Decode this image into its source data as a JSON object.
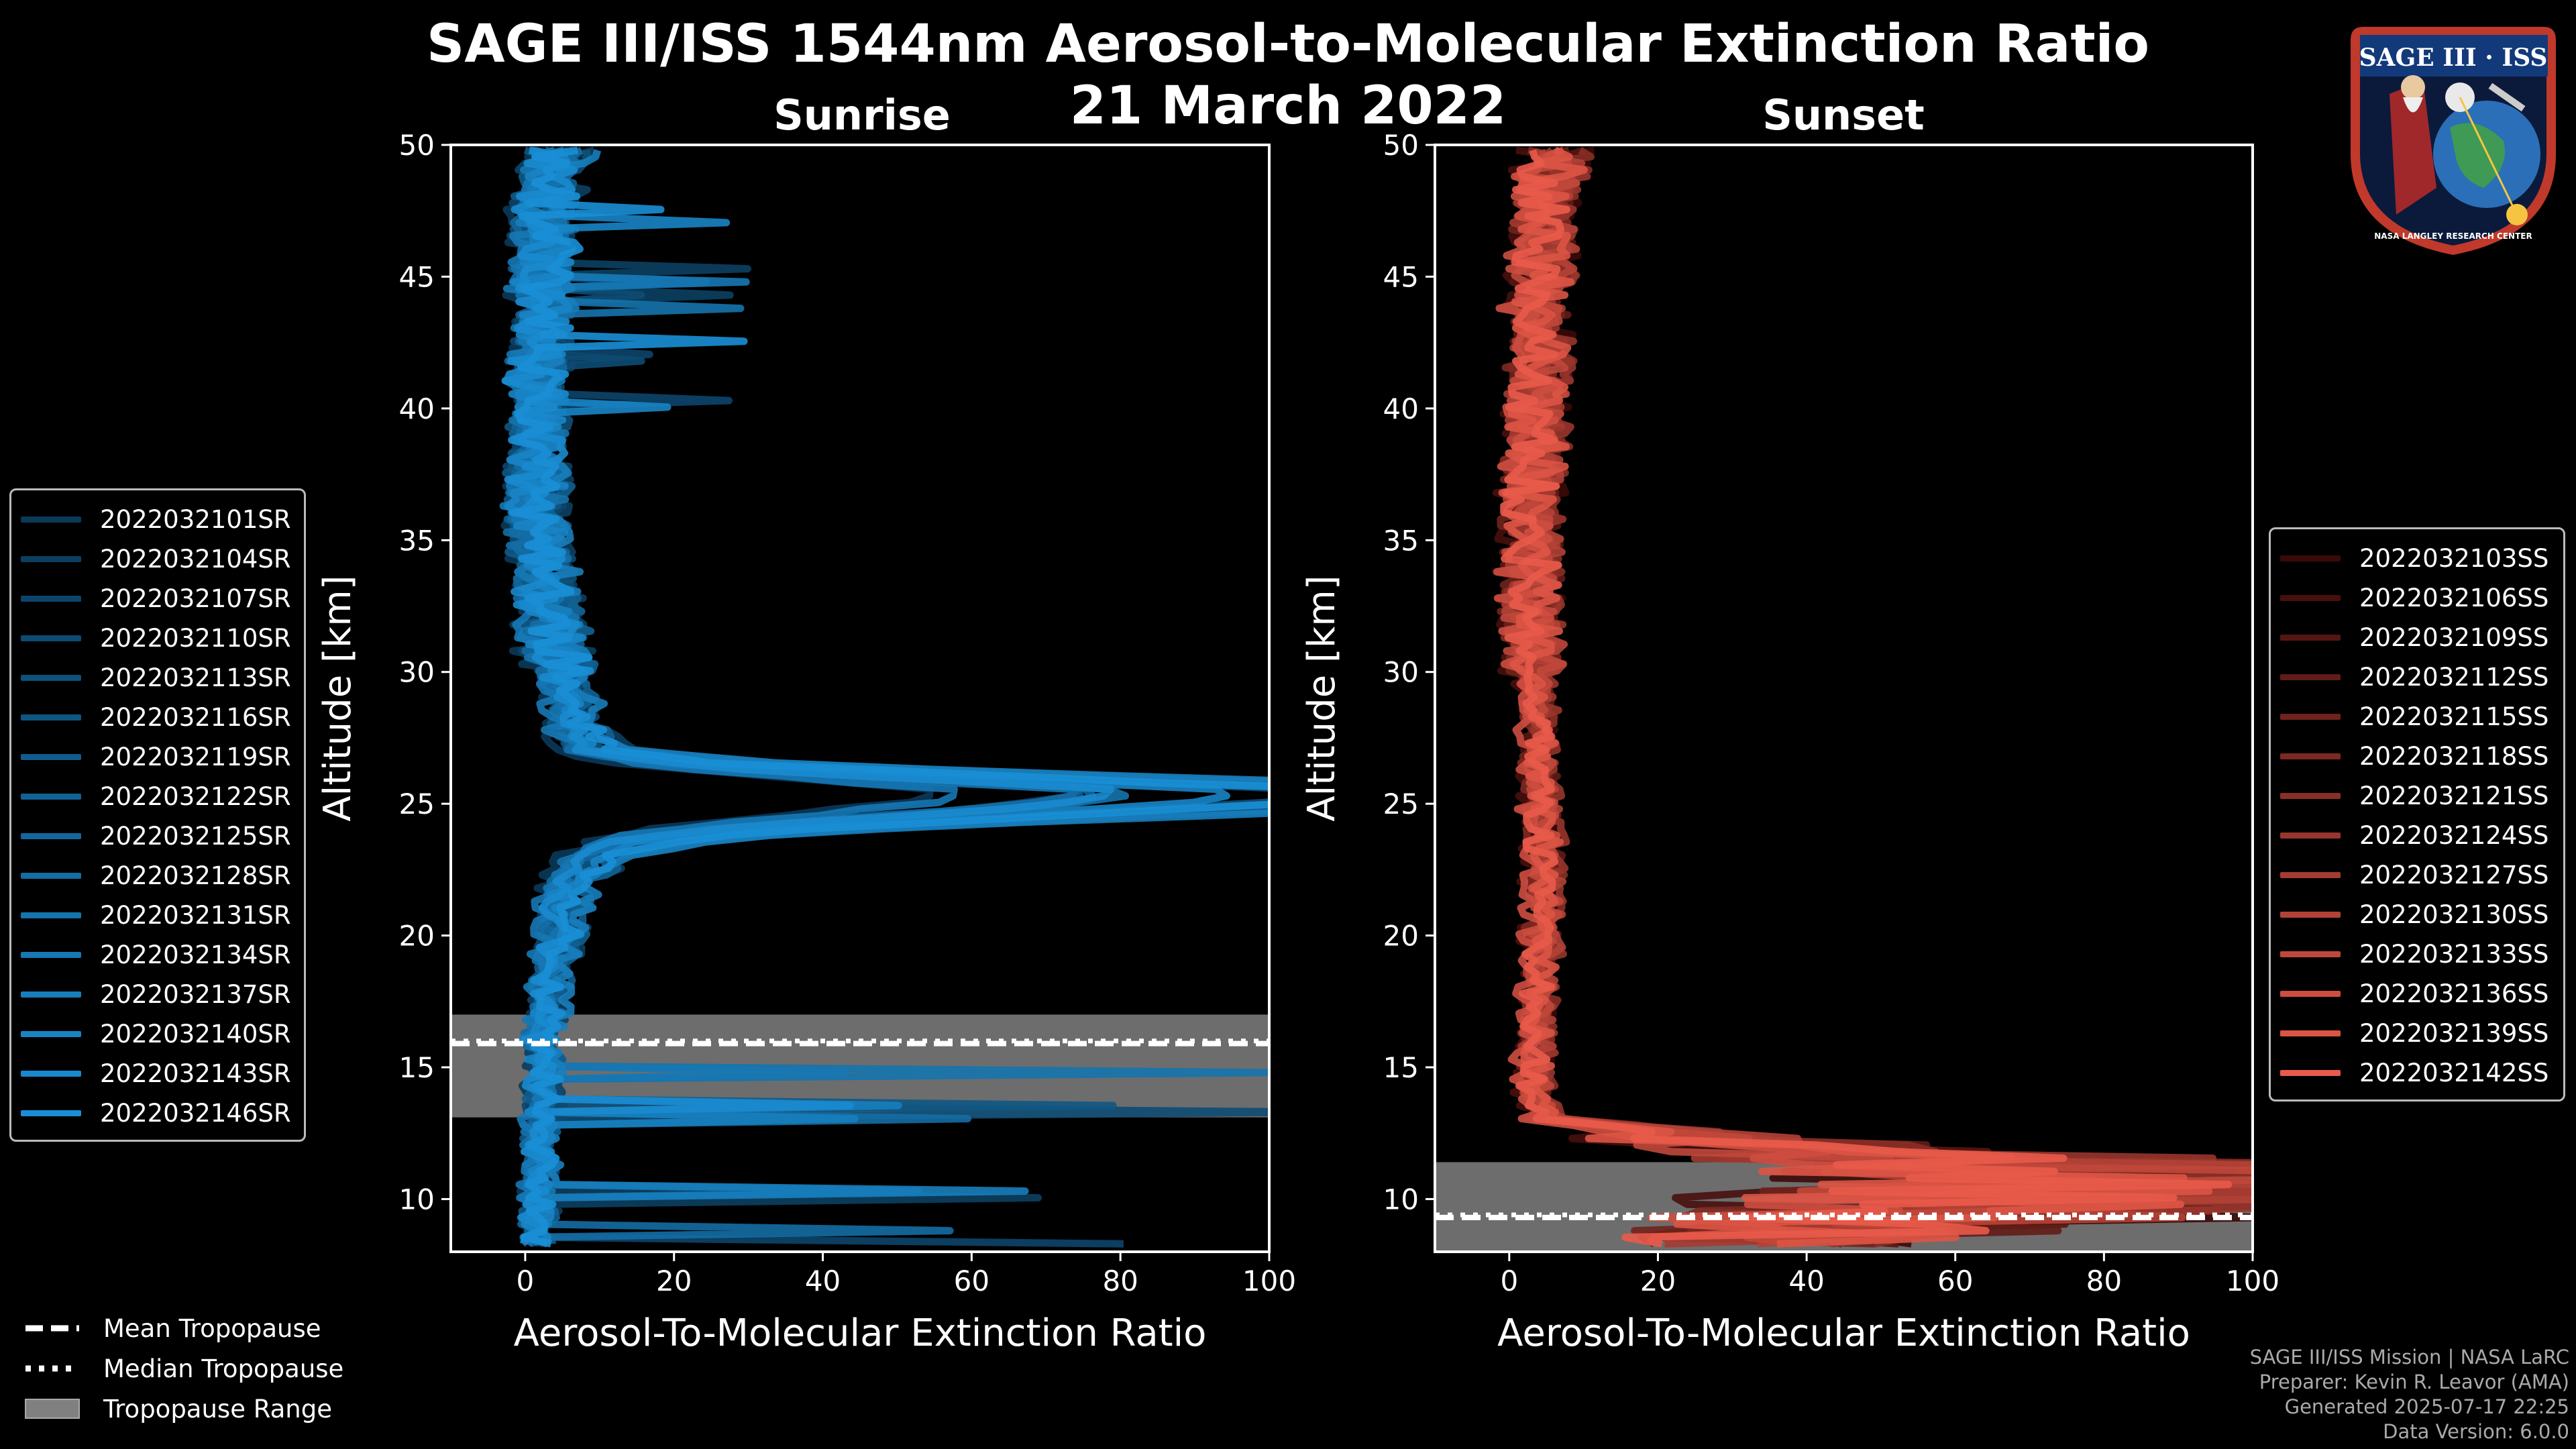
{
  "title_line1": "SAGE III/ISS 1544nm Aerosol-to-Molecular Extinction Ratio",
  "title_line2": "21 March 2022",
  "logo": {
    "text": "SAGE III · ISS",
    "org_text": "NASA LANGLEY RESEARCH CENTER"
  },
  "footer": {
    "mission": "SAGE III/ISS Mission | NASA LaRC",
    "preparer": "Preparer: Kevin R. Leavor (AMA)",
    "generated": "Generated 2025-07-17 22:25",
    "version": "Data Version: 6.0.0"
  },
  "bottom_legend": [
    {
      "label": "Mean Tropopause",
      "style": "dashed"
    },
    {
      "label": "Median Tropopause",
      "style": "dotted"
    },
    {
      "label": "Tropopause Range",
      "style": "patch"
    }
  ],
  "colors": {
    "sunrise": "#1a8fd6",
    "sunset": "#e85a4a",
    "tropo_patch": "#808080"
  },
  "chart_data": [
    {
      "type": "line",
      "title": "Sunrise",
      "xlabel": "Aerosol-To-Molecular Extinction Ratio",
      "ylabel": "Altitude [km]",
      "xlim": [
        -10,
        100
      ],
      "ylim": [
        8,
        50
      ],
      "xticks": [
        0,
        20,
        40,
        60,
        80,
        100
      ],
      "yticks": [
        10,
        15,
        20,
        25,
        30,
        35,
        40,
        45,
        50
      ],
      "tropopause": {
        "mean": 15.9,
        "median": 16.0,
        "min": 13.1,
        "max": 17.0
      },
      "series_names": [
        "2022032101SR",
        "2022032104SR",
        "2022032107SR",
        "2022032110SR",
        "2022032113SR",
        "2022032116SR",
        "2022032119SR",
        "2022032122SR",
        "2022032125SR",
        "2022032128SR",
        "2022032131SR",
        "2022032134SR",
        "2022032137SR",
        "2022032140SR",
        "2022032143SR",
        "2022032146SR"
      ],
      "profile": {
        "altitudes": [
          8.5,
          10,
          12,
          14,
          15,
          16,
          17,
          18,
          19,
          20,
          21,
          22,
          22.5,
          23,
          23.5,
          24,
          24.5,
          25,
          25.5,
          26,
          26.5,
          27,
          28,
          29,
          30,
          31,
          32,
          33,
          34,
          35,
          36,
          37,
          38,
          39,
          40,
          41,
          42,
          43,
          44,
          45,
          46,
          47,
          48,
          49,
          50
        ],
        "values": [
          1.5,
          2,
          2,
          2.5,
          2.5,
          2,
          3,
          3,
          4,
          5,
          5,
          6,
          8,
          10,
          15,
          30,
          60,
          90,
          100,
          60,
          25,
          10,
          7,
          6,
          5,
          4,
          4,
          3,
          2.5,
          2,
          1.5,
          2,
          1.5,
          2,
          2,
          1.5,
          2,
          2.5,
          2,
          2.5,
          3,
          2,
          3,
          4,
          5
        ]
      }
    },
    {
      "type": "line",
      "title": "Sunset",
      "xlabel": "Aerosol-To-Molecular Extinction Ratio",
      "ylabel": "Altitude [km]",
      "xlim": [
        -10,
        100
      ],
      "ylim": [
        8,
        50
      ],
      "xticks": [
        0,
        20,
        40,
        60,
        80,
        100
      ],
      "yticks": [
        10,
        15,
        20,
        25,
        30,
        35,
        40,
        45,
        50
      ],
      "tropopause": {
        "mean": 9.3,
        "median": 9.4,
        "min": 8.0,
        "max": 11.4
      },
      "series_names": [
        "2022032103SS",
        "2022032106SS",
        "2022032109SS",
        "2022032112SS",
        "2022032115SS",
        "2022032118SS",
        "2022032121SS",
        "2022032124SS",
        "2022032127SS",
        "2022032130SS",
        "2022032133SS",
        "2022032136SS",
        "2022032139SS",
        "2022032142SS"
      ],
      "profile": {
        "altitudes": [
          8.5,
          9,
          10,
          11,
          11.5,
          12,
          12.5,
          13,
          14,
          15,
          16,
          18,
          20,
          22,
          24,
          26,
          28,
          30,
          32,
          34,
          36,
          38,
          40,
          42,
          44,
          46,
          48,
          49,
          50
        ],
        "values": [
          40,
          60,
          80,
          90,
          70,
          40,
          20,
          5,
          3,
          3,
          3,
          3.5,
          4,
          4,
          4,
          3.5,
          3.5,
          3,
          2.5,
          2.5,
          2.5,
          3,
          3,
          3.5,
          3.5,
          4,
          4,
          5,
          6
        ]
      }
    }
  ]
}
